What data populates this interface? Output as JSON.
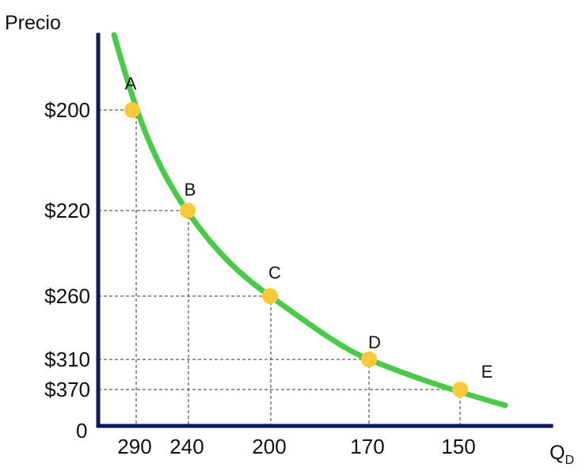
{
  "chart_data": {
    "type": "line",
    "ylabel": "Precio",
    "xlabel": "Q",
    "xlabel_subscript": "D",
    "origin_label": "0",
    "legend": "none",
    "grid": false,
    "points": [
      {
        "label": "A",
        "price": "$200",
        "quantity": "290"
      },
      {
        "label": "B",
        "price": "$220",
        "quantity": "240"
      },
      {
        "label": "C",
        "price": "$260",
        "quantity": "200"
      },
      {
        "label": "D",
        "price": "$310",
        "quantity": "170"
      },
      {
        "label": "E",
        "price": "$370",
        "quantity": "150"
      }
    ],
    "colors": {
      "axis": "#0d1a5c",
      "curve": "#4cc94a",
      "marker": "#fcc93a",
      "guide": "#333333"
    }
  }
}
